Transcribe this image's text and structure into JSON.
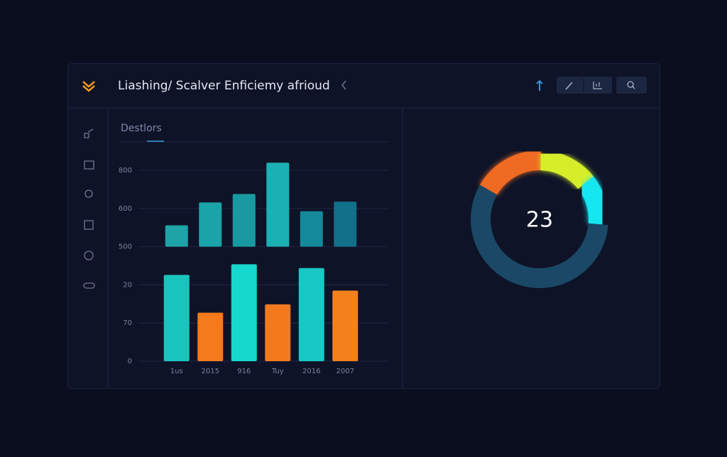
{
  "header": {
    "title": "Liashing/ Scalver Enficiemy afrioud"
  },
  "bar_panel": {
    "title": "Destlors",
    "chart_data": {
      "type": "bar",
      "categories": [
        "1us",
        "2015",
        "916",
        "Tuy",
        "2016",
        "2007"
      ],
      "ylim": [
        0,
        5.6
      ],
      "yticks": [
        0,
        {
          "value": 1,
          "label": "70"
        },
        {
          "value": 2,
          "label": "20"
        },
        {
          "value": 3,
          "label": "500"
        },
        {
          "value": 4,
          "label": "600"
        },
        {
          "value": 5,
          "label": "800"
        }
      ],
      "grid": true,
      "series": [
        {
          "from": 3,
          "values": [
            3.56,
            4.16,
            4.38,
            5.2,
            3.93,
            4.18
          ],
          "colors": [
            "#1ea3a6",
            "#1aa3a8",
            "#189aa0",
            "#1bb0b4",
            "#14899a",
            "#11708a"
          ]
        },
        {
          "values": [
            2.26,
            1.27,
            2.54,
            1.49,
            2.44,
            1.85
          ],
          "colors": [
            "#19c4bc",
            "#f47a1c",
            "#17d8cc",
            "#f4781c",
            "#18c8c4",
            "#f4801e"
          ]
        }
      ]
    }
  },
  "donut_panel": {
    "chart_data": {
      "type": "donut",
      "center_label": "23",
      "values": [
        17,
        14,
        12,
        57
      ],
      "colors": [
        "#ef6a20",
        "#d6ee2c",
        "#19e6f0",
        "#1a4866"
      ]
    }
  }
}
